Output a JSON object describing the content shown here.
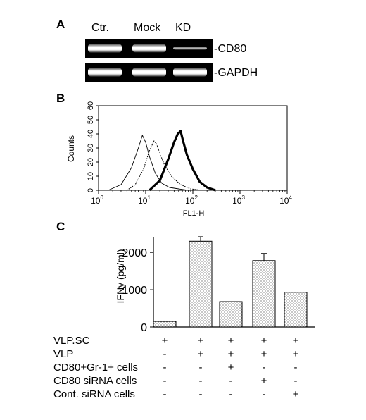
{
  "panel_a": {
    "letter": "A",
    "lane_labels": [
      "Ctr.",
      "Mock",
      "KD"
    ],
    "rows": [
      {
        "label": "-CD80",
        "intensities": [
          1.0,
          0.95,
          0.35
        ]
      },
      {
        "label": "-GAPDH",
        "intensities": [
          1.0,
          1.0,
          1.0
        ]
      }
    ]
  },
  "panel_b": {
    "letter": "B",
    "chart_data": {
      "type": "line",
      "xlabel": "FL1-H",
      "ylabel": "Counts",
      "x_scale": "log",
      "xlim": [
        1,
        10000
      ],
      "ylim": [
        0,
        60
      ],
      "x_ticks": [
        {
          "base": "10",
          "exp": "0"
        },
        {
          "base": "10",
          "exp": "1"
        },
        {
          "base": "10",
          "exp": "2"
        },
        {
          "base": "10",
          "exp": "3"
        },
        {
          "base": "10",
          "exp": "4"
        }
      ],
      "y_ticks": [
        "0",
        "10",
        "20",
        "30",
        "40",
        "50",
        "60"
      ],
      "series": [
        {
          "style": "thin",
          "x": [
            1.6,
            3,
            5,
            7,
            8.5,
            10,
            12,
            16,
            22,
            32,
            50,
            80
          ],
          "values": [
            0,
            4,
            16,
            30,
            39,
            34,
            24,
            12,
            5,
            2,
            1,
            0
          ]
        },
        {
          "style": "dotted",
          "x": [
            4,
            6,
            9,
            12,
            15,
            17,
            20,
            25,
            35,
            55,
            90,
            150
          ],
          "values": [
            0,
            4,
            15,
            28,
            35,
            33,
            26,
            18,
            10,
            4,
            1,
            0
          ]
        },
        {
          "style": "thick",
          "x": [
            12,
            20,
            30,
            40,
            48,
            55,
            62,
            75,
            100,
            140,
            200,
            300
          ],
          "values": [
            0,
            7,
            22,
            34,
            40,
            42,
            35,
            25,
            15,
            6,
            2,
            0
          ]
        }
      ]
    }
  },
  "panel_c": {
    "letter": "C",
    "chart_data": {
      "type": "bar",
      "ylabel": "IFNγ (pg/ml)",
      "ylim": [
        0,
        2400
      ],
      "y_ticks": [
        "0",
        "1000",
        "2000"
      ],
      "values": [
        150,
        2300,
        680,
        1780,
        930
      ],
      "errors": [
        0,
        120,
        0,
        190,
        0
      ]
    },
    "treatments": [
      {
        "label": "VLP.SC",
        "marks": [
          "+",
          "+",
          "+",
          "+",
          "+"
        ]
      },
      {
        "label": "VLP",
        "marks": [
          "-",
          "+",
          "+",
          "+",
          "+"
        ]
      },
      {
        "label": "CD80+Gr-1+ cells",
        "marks": [
          "-",
          "-",
          "+",
          "-",
          "-"
        ]
      },
      {
        "label": "CD80 siRNA cells",
        "marks": [
          "-",
          "-",
          "-",
          "+",
          "-"
        ]
      },
      {
        "label": "Cont. siRNA cells",
        "marks": [
          "-",
          "-",
          "-",
          "-",
          "+"
        ]
      }
    ]
  }
}
